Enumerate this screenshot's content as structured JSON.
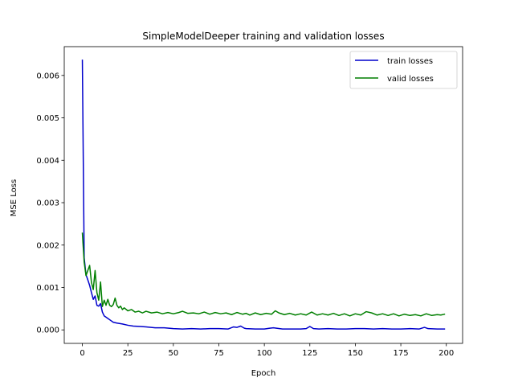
{
  "chart_data": {
    "type": "line",
    "title": "SimpleModelDeeper training and validation losses",
    "xlabel": "Epoch",
    "ylabel": "MSE Loss",
    "xlim": [
      -9.95,
      208.95
    ],
    "ylim": [
      -0.000318,
      0.006679
    ],
    "xticks": [
      0,
      25,
      50,
      75,
      100,
      125,
      150,
      175,
      200
    ],
    "xtick_labels": [
      "0",
      "25",
      "50",
      "75",
      "100",
      "125",
      "150",
      "175",
      "200"
    ],
    "yticks": [
      0.0,
      0.001,
      0.002,
      0.003,
      0.004,
      0.005,
      0.006
    ],
    "ytick_labels": [
      "0.000",
      "0.001",
      "0.002",
      "0.003",
      "0.004",
      "0.005",
      "0.006"
    ],
    "grid": false,
    "legend_position": "top-right",
    "series": [
      {
        "name": "train losses",
        "color": "#0000cc",
        "points": [
          [
            0,
            0.00636
          ],
          [
            1,
            0.0017
          ],
          [
            2,
            0.0013
          ],
          [
            3,
            0.00118
          ],
          [
            4,
            0.00105
          ],
          [
            5,
            0.00088
          ],
          [
            6,
            0.00072
          ],
          [
            7,
            0.0008
          ],
          [
            8,
            0.00058
          ],
          [
            9,
            0.00056
          ],
          [
            10,
            0.00062
          ],
          [
            11,
            0.00042
          ],
          [
            12,
            0.00033
          ],
          [
            13,
            0.0003
          ],
          [
            14,
            0.00027
          ],
          [
            15,
            0.00024
          ],
          [
            17,
            0.00018
          ],
          [
            19,
            0.00016
          ],
          [
            22,
            0.00014
          ],
          [
            25,
            0.00011
          ],
          [
            28,
            9e-05
          ],
          [
            32,
            8e-05
          ],
          [
            35,
            7e-05
          ],
          [
            40,
            5e-05
          ],
          [
            45,
            5e-05
          ],
          [
            50,
            3e-05
          ],
          [
            55,
            2e-05
          ],
          [
            60,
            3e-05
          ],
          [
            65,
            2e-05
          ],
          [
            70,
            3e-05
          ],
          [
            75,
            3e-05
          ],
          [
            80,
            2e-05
          ],
          [
            83,
            7e-05
          ],
          [
            85,
            6e-05
          ],
          [
            87,
            9e-05
          ],
          [
            89,
            4e-05
          ],
          [
            90,
            3e-05
          ],
          [
            95,
            2e-05
          ],
          [
            100,
            2e-05
          ],
          [
            103,
            4e-05
          ],
          [
            105,
            5e-05
          ],
          [
            110,
            2e-05
          ],
          [
            115,
            2e-05
          ],
          [
            120,
            2e-05
          ],
          [
            123,
            3e-05
          ],
          [
            125,
            8e-05
          ],
          [
            127,
            3e-05
          ],
          [
            130,
            2e-05
          ],
          [
            135,
            3e-05
          ],
          [
            140,
            2e-05
          ],
          [
            145,
            2e-05
          ],
          [
            150,
            3e-05
          ],
          [
            155,
            3e-05
          ],
          [
            160,
            2e-05
          ],
          [
            165,
            3e-05
          ],
          [
            170,
            2e-05
          ],
          [
            175,
            2e-05
          ],
          [
            180,
            3e-05
          ],
          [
            185,
            2e-05
          ],
          [
            188,
            6e-05
          ],
          [
            190,
            3e-05
          ],
          [
            195,
            2e-05
          ],
          [
            199,
            2e-05
          ]
        ]
      },
      {
        "name": "valid losses",
        "color": "#007f00",
        "points": [
          [
            0,
            0.00228
          ],
          [
            1,
            0.0016
          ],
          [
            2,
            0.00128
          ],
          [
            3,
            0.0014
          ],
          [
            4,
            0.00152
          ],
          [
            5,
            0.00112
          ],
          [
            6,
            0.00095
          ],
          [
            7,
            0.0014
          ],
          [
            8,
            0.00088
          ],
          [
            9,
            0.0007
          ],
          [
            10,
            0.00113
          ],
          [
            11,
            0.00055
          ],
          [
            12,
            0.0007
          ],
          [
            13,
            0.00058
          ],
          [
            14,
            0.00072
          ],
          [
            15,
            0.00058
          ],
          [
            16,
            0.00055
          ],
          [
            17,
            0.0006
          ],
          [
            18,
            0.00075
          ],
          [
            19,
            0.00058
          ],
          [
            20,
            0.00052
          ],
          [
            21,
            0.00056
          ],
          [
            22,
            0.00048
          ],
          [
            23,
            0.00052
          ],
          [
            25,
            0.00045
          ],
          [
            27,
            0.00048
          ],
          [
            29,
            0.00042
          ],
          [
            31,
            0.00044
          ],
          [
            33,
            0.0004
          ],
          [
            35,
            0.00044
          ],
          [
            38,
            0.0004
          ],
          [
            41,
            0.00042
          ],
          [
            44,
            0.00038
          ],
          [
            47,
            0.00041
          ],
          [
            50,
            0.00038
          ],
          [
            53,
            0.00041
          ],
          [
            55,
            0.00044
          ],
          [
            58,
            0.00039
          ],
          [
            61,
            0.0004
          ],
          [
            64,
            0.00038
          ],
          [
            67,
            0.00042
          ],
          [
            70,
            0.00037
          ],
          [
            73,
            0.00041
          ],
          [
            76,
            0.00038
          ],
          [
            79,
            0.0004
          ],
          [
            82,
            0.00036
          ],
          [
            85,
            0.00041
          ],
          [
            88,
            0.00037
          ],
          [
            90,
            0.00039
          ],
          [
            92,
            0.00035
          ],
          [
            95,
            0.0004
          ],
          [
            98,
            0.00036
          ],
          [
            101,
            0.00039
          ],
          [
            104,
            0.00037
          ],
          [
            106,
            0.00045
          ],
          [
            108,
            0.0004
          ],
          [
            111,
            0.00036
          ],
          [
            114,
            0.00039
          ],
          [
            117,
            0.00035
          ],
          [
            120,
            0.00038
          ],
          [
            123,
            0.00035
          ],
          [
            126,
            0.00042
          ],
          [
            129,
            0.00035
          ],
          [
            132,
            0.00038
          ],
          [
            135,
            0.00035
          ],
          [
            138,
            0.00039
          ],
          [
            141,
            0.00034
          ],
          [
            144,
            0.00038
          ],
          [
            147,
            0.00033
          ],
          [
            150,
            0.00038
          ],
          [
            153,
            0.00035
          ],
          [
            156,
            0.00043
          ],
          [
            159,
            0.0004
          ],
          [
            162,
            0.00035
          ],
          [
            165,
            0.00038
          ],
          [
            168,
            0.00034
          ],
          [
            171,
            0.00038
          ],
          [
            174,
            0.00033
          ],
          [
            177,
            0.00037
          ],
          [
            180,
            0.00034
          ],
          [
            183,
            0.00036
          ],
          [
            186,
            0.00033
          ],
          [
            189,
            0.00038
          ],
          [
            192,
            0.00034
          ],
          [
            195,
            0.00036
          ],
          [
            197,
            0.00035
          ],
          [
            199,
            0.00037
          ]
        ]
      }
    ]
  }
}
